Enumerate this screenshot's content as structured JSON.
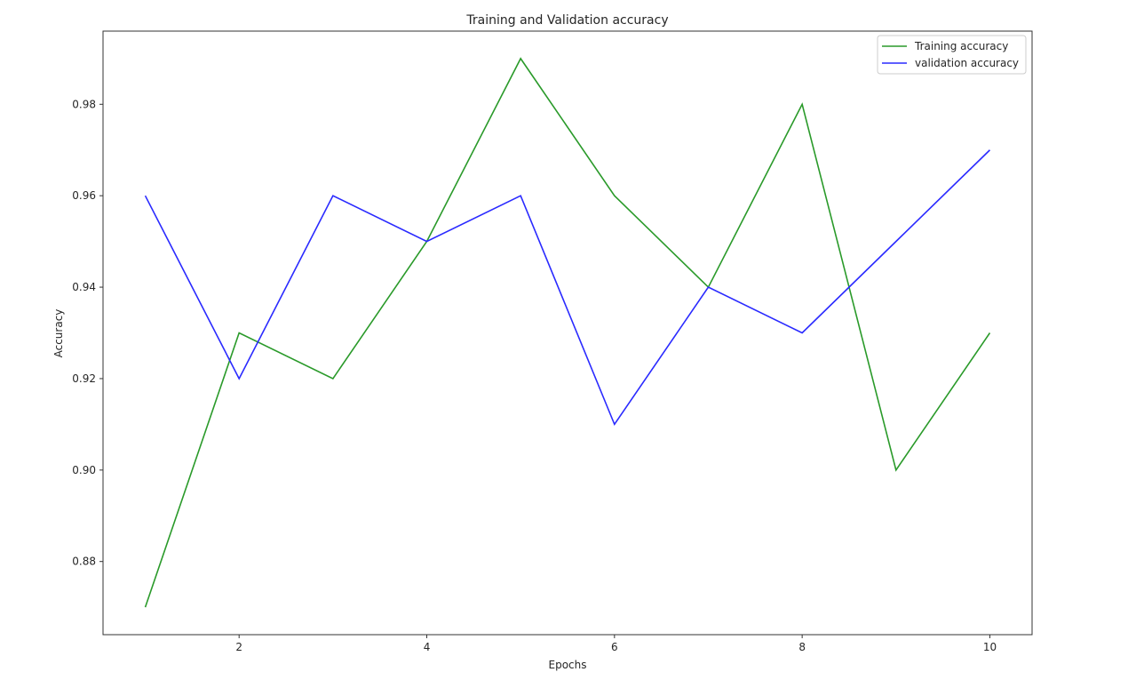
{
  "chart_data": {
    "type": "line",
    "title": "Training and Validation accuracy",
    "xlabel": "Epochs",
    "ylabel": "Accuracy",
    "x": [
      1,
      2,
      3,
      4,
      5,
      6,
      7,
      8,
      9,
      10
    ],
    "series": [
      {
        "name": "Training accuracy",
        "color": "#008000",
        "values": [
          0.87,
          0.93,
          0.92,
          0.95,
          0.99,
          0.96,
          0.94,
          0.98,
          0.9,
          0.93
        ]
      },
      {
        "name": "validation accuracy",
        "color": "#0000ff",
        "values": [
          0.96,
          0.92,
          0.96,
          0.95,
          0.96,
          0.91,
          0.94,
          0.93,
          0.95,
          0.97
        ]
      }
    ],
    "xticks": [
      "2",
      "4",
      "6",
      "8",
      "10"
    ],
    "yticks": [
      "0.88",
      "0.90",
      "0.92",
      "0.94",
      "0.96",
      "0.98"
    ],
    "xlim": [
      0.55,
      10.45
    ],
    "ylim": [
      0.864,
      0.996
    ],
    "grid": false,
    "legend_position": "upper right"
  }
}
